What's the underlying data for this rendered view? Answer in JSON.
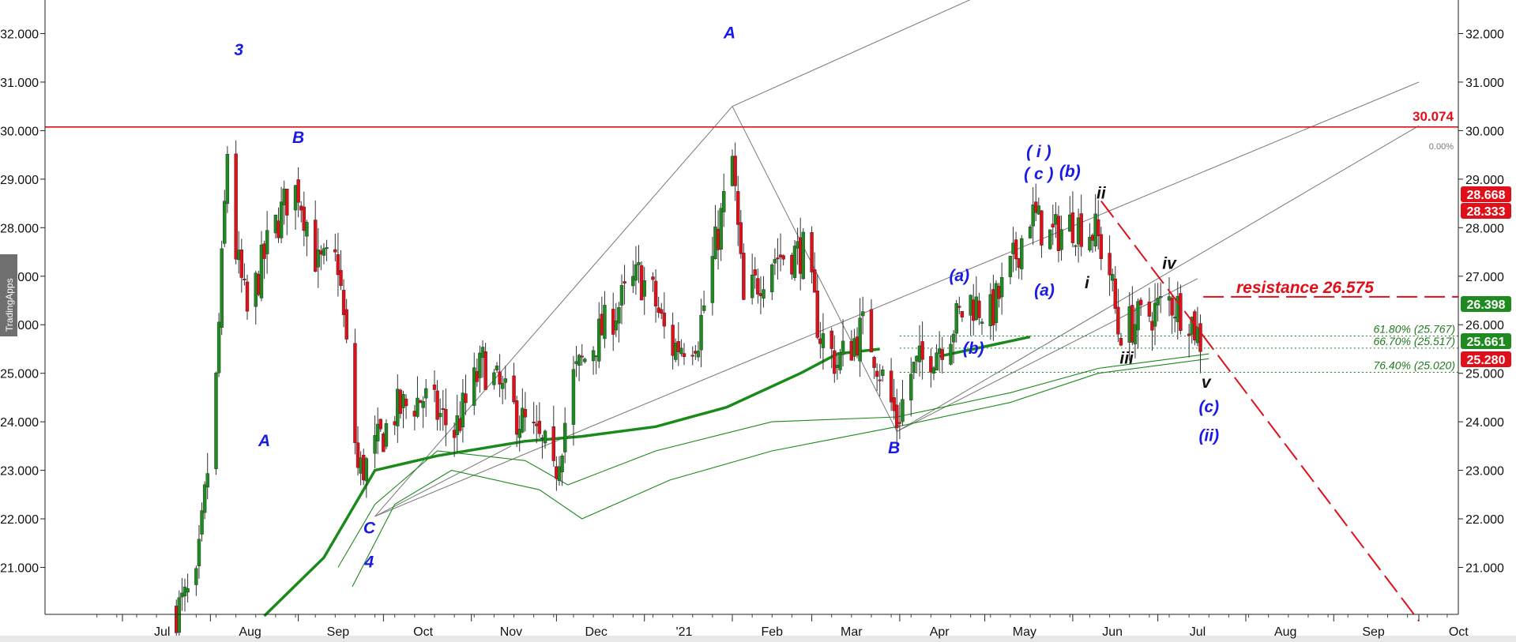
{
  "watermark": "TradingApps",
  "colors": {
    "up": "#1f8a1f",
    "down": "#e0101a",
    "resistance": "#e0101a",
    "wave_blue": "#1a1ae6",
    "wave_black": "#111111",
    "ma_green": "#1a8a1a"
  },
  "chart_data": {
    "type": "candlestick",
    "x_ticks": [
      "Jul",
      "Aug",
      "Sep",
      "Oct",
      "Nov",
      "Dec",
      "'21",
      "Feb",
      "Mar",
      "Apr",
      "May",
      "Jun",
      "Jul",
      "Aug",
      "Sep",
      "Oct"
    ],
    "y_ticks": [
      "32.000",
      "31.000",
      "30.000",
      "29.000",
      "28.000",
      "27.000",
      "26.000",
      "25.000",
      "24.000",
      "23.000",
      "22.000",
      "21.000"
    ],
    "ylim": [
      20.0,
      32.6
    ],
    "candles_close_path": [
      [
        "2020-07-20",
        20.1
      ],
      [
        "2020-07-27",
        20.6
      ],
      [
        "2020-08-03",
        24.8
      ],
      [
        "2020-08-07",
        29.6
      ],
      [
        "2020-08-10",
        27.5
      ],
      [
        "2020-08-14",
        26.2
      ],
      [
        "2020-08-21",
        27.6
      ],
      [
        "2020-08-28",
        28.6
      ],
      [
        "2020-09-01",
        28.8
      ],
      [
        "2020-09-08",
        27.2
      ],
      [
        "2020-09-15",
        27.3
      ],
      [
        "2020-09-22",
        23.0
      ],
      [
        "2020-09-25",
        23.1
      ],
      [
        "2020-10-05",
        24.2
      ],
      [
        "2020-10-15",
        24.5
      ],
      [
        "2020-10-26",
        23.8
      ],
      [
        "2020-11-05",
        25.2
      ],
      [
        "2020-11-15",
        24.3
      ],
      [
        "2020-11-27",
        23.4
      ],
      [
        "2020-11-30",
        22.8
      ],
      [
        "2020-12-07",
        24.9
      ],
      [
        "2020-12-15",
        25.7
      ],
      [
        "2020-12-30",
        27.0
      ],
      [
        "2021-01-04",
        26.6
      ],
      [
        "2021-01-10",
        25.5
      ],
      [
        "2021-01-20",
        25.8
      ],
      [
        "2021-02-01",
        29.4
      ],
      [
        "2021-02-05",
        26.4
      ],
      [
        "2021-02-15",
        27.4
      ],
      [
        "2021-02-26",
        27.5
      ],
      [
        "2021-03-04",
        25.8
      ],
      [
        "2021-03-10",
        25.2
      ],
      [
        "2021-03-20",
        26.0
      ],
      [
        "2021-03-31",
        24.0
      ],
      [
        "2021-04-05",
        25.0
      ],
      [
        "2021-04-15",
        25.6
      ],
      [
        "2021-04-26",
        26.5
      ],
      [
        "2021-05-03",
        26.2
      ],
      [
        "2021-05-10",
        27.1
      ],
      [
        "2021-05-17",
        28.3
      ],
      [
        "2021-05-24",
        27.8
      ],
      [
        "2021-06-01",
        28.1
      ],
      [
        "2021-06-09",
        27.9
      ],
      [
        "2021-06-14",
        27.1
      ],
      [
        "2021-06-17",
        25.9
      ],
      [
        "2021-06-25",
        26.1
      ],
      [
        "2021-07-05",
        26.5
      ],
      [
        "2021-07-12",
        26.2
      ],
      [
        "2021-07-19",
        25.3
      ]
    ],
    "moving_averages": [
      {
        "style": "thick",
        "points": [
          [
            "2020-08-20",
            20.0
          ],
          [
            "2020-09-10",
            21.2
          ],
          [
            "2020-09-20",
            22.2
          ],
          [
            "2020-09-28",
            23.0
          ],
          [
            "2020-10-20",
            23.3
          ],
          [
            "2020-11-20",
            23.6
          ],
          [
            "2020-12-10",
            23.7
          ],
          [
            "2021-01-05",
            23.9
          ],
          [
            "2021-01-30",
            24.3
          ],
          [
            "2021-02-25",
            25.0
          ],
          [
            "2021-03-10",
            25.4
          ],
          [
            "2021-03-25",
            25.5
          ]
        ]
      },
      {
        "style": "thin",
        "points": [
          [
            "2020-09-15",
            21.0
          ],
          [
            "2020-09-28",
            22.3
          ],
          [
            "2020-10-20",
            23.4
          ],
          [
            "2020-11-20",
            23.2
          ],
          [
            "2020-12-05",
            22.7
          ],
          [
            "2021-01-05",
            23.4
          ],
          [
            "2021-02-15",
            24.0
          ],
          [
            "2021-03-31",
            24.1
          ],
          [
            "2021-05-10",
            24.6
          ],
          [
            "2021-06-10",
            25.1
          ],
          [
            "2021-07-19",
            25.4
          ]
        ]
      },
      {
        "style": "thin",
        "points": [
          [
            "2020-09-20",
            20.6
          ],
          [
            "2020-10-05",
            22.3
          ],
          [
            "2020-10-25",
            23.0
          ],
          [
            "2020-11-25",
            22.6
          ],
          [
            "2020-12-10",
            22.0
          ],
          [
            "2021-01-10",
            22.8
          ],
          [
            "2021-02-15",
            23.4
          ],
          [
            "2021-03-31",
            23.9
          ],
          [
            "2021-05-10",
            24.4
          ],
          [
            "2021-06-10",
            25.0
          ],
          [
            "2021-07-19",
            25.3
          ]
        ]
      }
    ],
    "horizontal_levels": [
      {
        "value": 30.074,
        "label": "30.074",
        "style": "solid-red"
      },
      {
        "value": 26.575,
        "label": "resistance  26.575",
        "style": "dashed-red"
      }
    ],
    "fib_levels": [
      {
        "value": 25.767,
        "label": "61.80% (25.767)"
      },
      {
        "value": 25.517,
        "label": "66.70% (25.517)"
      },
      {
        "value": 25.02,
        "label": "76.40% (25.020)"
      }
    ],
    "fib_zero_label": "0.00%",
    "price_tags": [
      {
        "value": 28.668,
        "label": "28.668",
        "color": "#e0101a"
      },
      {
        "value": 28.333,
        "label": "28.333",
        "color": "#e0101a"
      },
      {
        "value": 26.398,
        "label": "26.398",
        "color": "#1f8a1f"
      },
      {
        "value": 25.661,
        "label": "25.661",
        "color": "#1f8a1f"
      },
      {
        "value": 25.28,
        "label": "25.280",
        "color": "#e0101a"
      }
    ],
    "wave_labels": [
      {
        "text": "3",
        "color": "blue"
      },
      {
        "text": "B",
        "color": "blue"
      },
      {
        "text": "A",
        "color": "blue"
      },
      {
        "text": "C",
        "color": "blue"
      },
      {
        "text": "4",
        "color": "blue"
      },
      {
        "text": "A",
        "color": "blue"
      },
      {
        "text": "B",
        "color": "blue"
      },
      {
        "text": "(a)",
        "color": "blue"
      },
      {
        "text": "(a)",
        "color": "blue"
      },
      {
        "text": "(b)",
        "color": "blue"
      },
      {
        "text": "( i )",
        "color": "blue"
      },
      {
        "text": "( c )",
        "color": "blue"
      },
      {
        "text": "(b)",
        "color": "blue"
      },
      {
        "text": "ii",
        "color": "black"
      },
      {
        "text": "i",
        "color": "black"
      },
      {
        "text": "iv",
        "color": "black"
      },
      {
        "text": "iii",
        "color": "black"
      },
      {
        "text": "v",
        "color": "black"
      },
      {
        "text": "(c)",
        "color": "blue"
      },
      {
        "text": "(ii)",
        "color": "blue"
      }
    ]
  }
}
